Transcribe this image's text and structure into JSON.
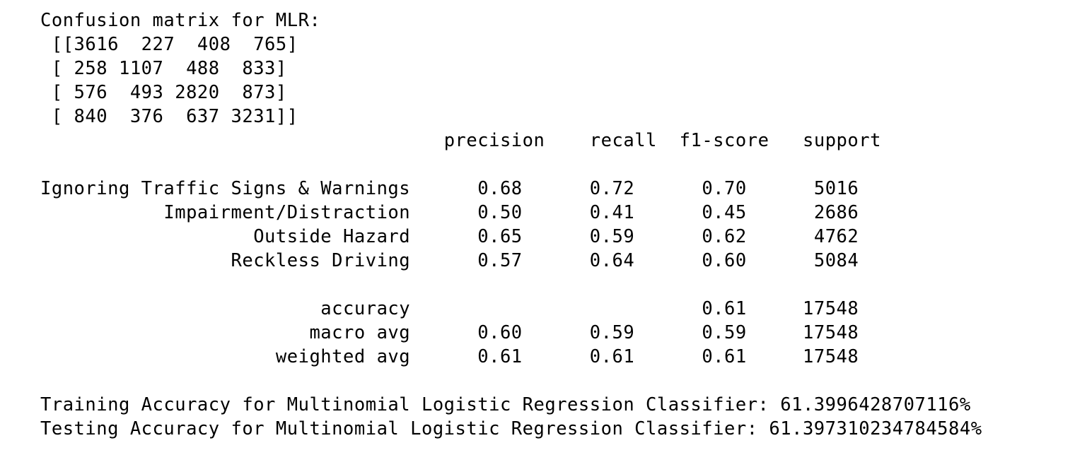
{
  "output": {
    "confusion_title": "Confusion matrix for MLR:",
    "matrix_rows": [
      " [[3616  227  408  765]",
      " [ 258 1107  488  833]",
      " [ 576  493 2820  873]",
      " [ 840  376  637 3231]]"
    ],
    "report": {
      "headers": [
        "precision",
        "recall",
        "f1-score",
        "support"
      ],
      "classes": [
        {
          "label": "Ignoring Traffic Signs & Warnings",
          "precision": "0.68",
          "recall": "0.72",
          "f1": "0.70",
          "support": "5016"
        },
        {
          "label": "Impairment/Distraction",
          "precision": "0.50",
          "recall": "0.41",
          "f1": "0.45",
          "support": "2686"
        },
        {
          "label": "Outside Hazard",
          "precision": "0.65",
          "recall": "0.59",
          "f1": "0.62",
          "support": "4762"
        },
        {
          "label": "Reckless Driving",
          "precision": "0.57",
          "recall": "0.64",
          "f1": "0.60",
          "support": "5084"
        }
      ],
      "summary": [
        {
          "label": "accuracy",
          "precision": "",
          "recall": "",
          "f1": "0.61",
          "support": "17548"
        },
        {
          "label": "macro avg",
          "precision": "0.60",
          "recall": "0.59",
          "f1": "0.59",
          "support": "17548"
        },
        {
          "label": "weighted avg",
          "precision": "0.61",
          "recall": "0.61",
          "f1": "0.61",
          "support": "17548"
        }
      ]
    },
    "training_accuracy": "Training Accuracy for Multinomial Logistic Regression Classifier: 61.3996428707116%",
    "testing_accuracy": "Testing Accuracy for Multinomial Logistic Regression Classifier: 61.397310234784584%"
  }
}
